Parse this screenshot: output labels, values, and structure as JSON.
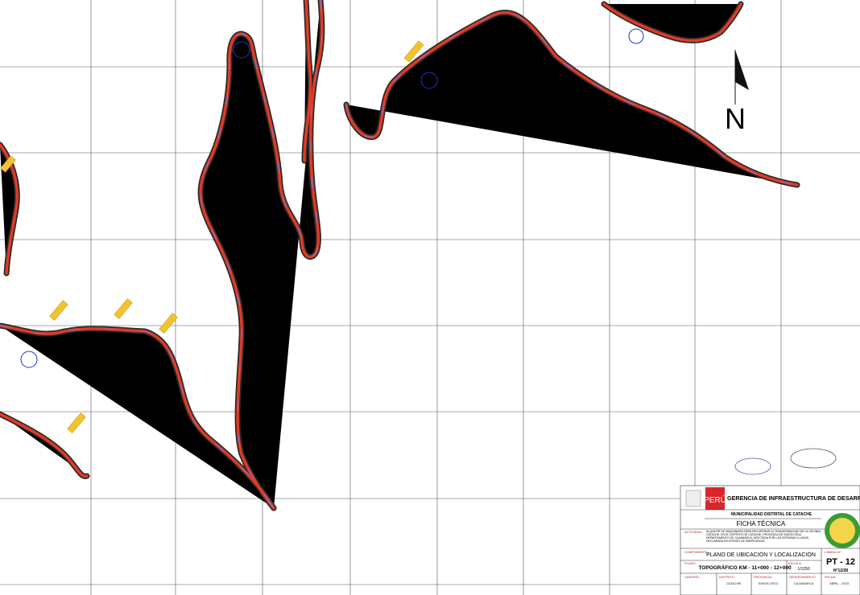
{
  "north_label": "N",
  "title_block": {
    "country": "PERÚ",
    "agency": "GERENCIA DE INFRAESTRUCTURA DE DESARROLLO URBANO Y RUR",
    "municipality": "MUNICIPALIDAD DISTRITAL DE CATACHE",
    "sheet_type": "FICHA TÉCNICA",
    "activity_label": "ACTIVIDAD:",
    "activity_text": "ALQUILER DE MAQUINARIA PARA RECUPERAR LA TRANSITABILIDAD DE LA VECINAL CATACHE, EN EL DISTRITO DE CATACHE, PROVINCIA DE SANTA CRUZ, DEPARTAMENTO DE CAJAMARCA, AFECTADA POR LAS INTENSAS LLUVIAS, DECLARADA EN ESTADO DE EMERGENCIA",
    "component_label": "COMPONENTE:",
    "component": "PLANO DE UBICACIÓN Y LOCALIZACIÓN",
    "sheet_label": "LÁMINA N°:",
    "sheet": "PT - 12",
    "sheet_count": "N°12/28",
    "plan_label": "PLANO:",
    "plan": "TOPOGRÁFICO KM - 11+000 - 12+000",
    "scale_label": "ESCALA:",
    "scale": "1/1250",
    "fields": [
      {
        "label": "CASERÍO:",
        "value": ""
      },
      {
        "label": "DISTRITO:",
        "value": "CATACHE"
      },
      {
        "label": "PROVINCIA:",
        "value": "SANTA CRUZ"
      },
      {
        "label": "DEPARTAMENTO:",
        "value": "CAJAMARCA"
      },
      {
        "label": "FECHA:",
        "value": "ABRIL - 2023"
      }
    ]
  }
}
